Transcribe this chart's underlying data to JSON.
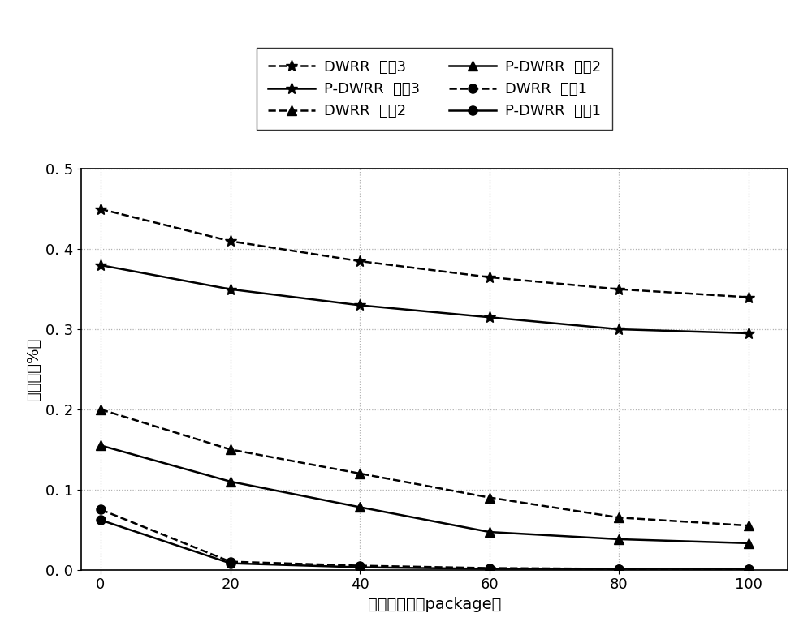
{
  "x": [
    0,
    20,
    40,
    60,
    80,
    100
  ],
  "DWRR_q3": [
    0.45,
    0.41,
    0.385,
    0.365,
    0.35,
    0.34
  ],
  "PDWRR_q3": [
    0.38,
    0.35,
    0.33,
    0.315,
    0.3,
    0.295
  ],
  "DWRR_q2": [
    0.2,
    0.15,
    0.12,
    0.09,
    0.065,
    0.055
  ],
  "PDWRR_q2": [
    0.155,
    0.11,
    0.078,
    0.047,
    0.038,
    0.033
  ],
  "DWRR_q1": [
    0.075,
    0.01,
    0.005,
    0.002,
    0.001,
    0.001
  ],
  "PDWRR_q1": [
    0.062,
    0.008,
    0.003,
    0.001,
    0.001,
    0.001
  ],
  "xlabel": "缓冲区大小（package）",
  "ylabel": "丢包率（%）",
  "ylim": [
    0.0,
    0.5
  ],
  "yticks": [
    0.0,
    0.1,
    0.2,
    0.3,
    0.4,
    0.5
  ],
  "xticks": [
    0,
    20,
    40,
    60,
    80,
    100
  ],
  "legend_DWRR_q3": "DWRR  队劗3",
  "legend_PDWRR_q3": "P-DWRR  队劗3",
  "legend_DWRR_q2": "DWRR  队劗2",
  "legend_PDWRR_q2": "P-DWRR  队劗2",
  "legend_DWRR_q1": "DWRR  队劗1",
  "legend_PDWRR_q1": "P-DWRR  队劗1",
  "line_color": "#000000",
  "bg_color": "#ffffff",
  "grid_color": "#b0b0b0",
  "label_fontsize": 14,
  "tick_fontsize": 13,
  "legend_fontsize": 13
}
